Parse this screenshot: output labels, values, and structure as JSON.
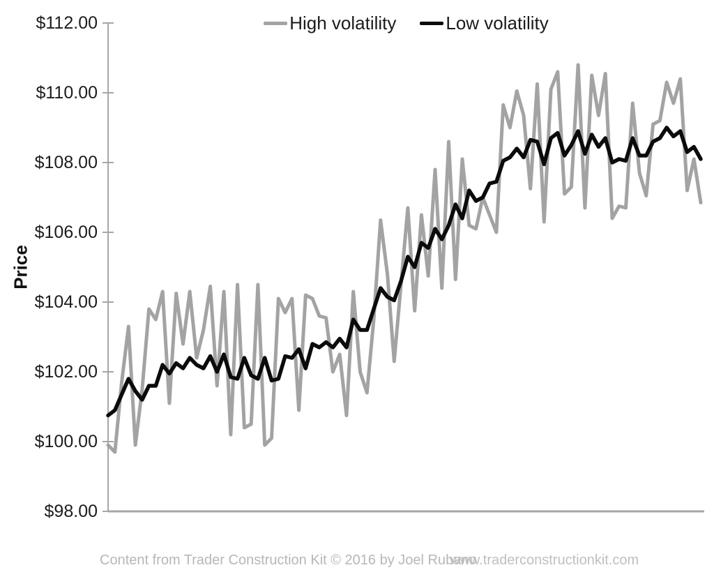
{
  "chart_data": {
    "type": "line",
    "title": "",
    "xlabel": "",
    "ylabel": "Price",
    "ylim": [
      98,
      112
    ],
    "y_tick_step": 2,
    "y_tick_labels": [
      "$98.00",
      "$100.00",
      "$102.00",
      "$104.00",
      "$106.00",
      "$108.00",
      "$110.00",
      "$112.00"
    ],
    "grid": false,
    "legend_position": "top-center",
    "axis_color": "#a6a6a6",
    "x": "index 1..88 (unlabeled time axis)",
    "series": [
      {
        "name": "High volatility",
        "color": "#a3a3a3",
        "stroke_width": 5,
        "values": [
          99.9,
          99.7,
          101.7,
          103.3,
          99.9,
          101.5,
          103.8,
          103.5,
          104.3,
          101.1,
          104.25,
          102.8,
          104.3,
          102.4,
          103.2,
          104.45,
          101.6,
          104.3,
          100.2,
          104.5,
          100.4,
          100.5,
          104.5,
          99.9,
          100.1,
          104.1,
          103.7,
          104.1,
          100.9,
          104.2,
          104.1,
          103.6,
          103.55,
          102.0,
          102.5,
          100.75,
          104.3,
          102.0,
          101.4,
          103.5,
          106.35,
          104.8,
          102.3,
          104.5,
          106.7,
          103.75,
          106.5,
          104.75,
          107.8,
          104.4,
          108.6,
          104.65,
          108.1,
          106.2,
          106.1,
          107.0,
          106.5,
          106.0,
          109.65,
          109.0,
          110.05,
          109.35,
          107.25,
          110.25,
          106.3,
          110.1,
          110.6,
          107.1,
          107.3,
          110.8,
          106.7,
          110.5,
          109.35,
          110.55,
          106.4,
          106.75,
          106.7,
          109.7,
          107.7,
          107.05,
          109.1,
          109.2,
          110.3,
          109.7,
          110.4,
          107.2,
          108.1,
          106.85
        ]
      },
      {
        "name": "Low volatility",
        "color": "#0b0b0b",
        "stroke_width": 5.5,
        "values": [
          100.75,
          100.9,
          101.35,
          101.8,
          101.45,
          101.2,
          101.6,
          101.6,
          102.2,
          101.95,
          102.25,
          102.1,
          102.4,
          102.2,
          102.1,
          102.45,
          102.0,
          102.5,
          101.85,
          101.8,
          102.4,
          101.9,
          101.8,
          102.4,
          101.75,
          101.8,
          102.45,
          102.4,
          102.65,
          102.1,
          102.8,
          102.7,
          102.85,
          102.7,
          102.95,
          102.7,
          103.5,
          103.2,
          103.2,
          103.8,
          104.4,
          104.15,
          104.05,
          104.6,
          105.3,
          105.0,
          105.7,
          105.55,
          106.1,
          105.8,
          106.2,
          106.8,
          106.4,
          107.2,
          106.9,
          107.0,
          107.4,
          107.45,
          108.05,
          108.15,
          108.4,
          108.15,
          108.65,
          108.6,
          107.95,
          108.7,
          108.85,
          108.2,
          108.5,
          108.9,
          108.25,
          108.8,
          108.45,
          108.7,
          108.0,
          108.1,
          108.05,
          108.7,
          108.2,
          108.2,
          108.6,
          108.7,
          109.0,
          108.75,
          108.9,
          108.3,
          108.45,
          108.1
        ]
      }
    ]
  },
  "footer": {
    "left": "Content from Trader Construction Kit © 2016 by Joel Rubano",
    "right": "www.traderconstructionkit.com"
  }
}
